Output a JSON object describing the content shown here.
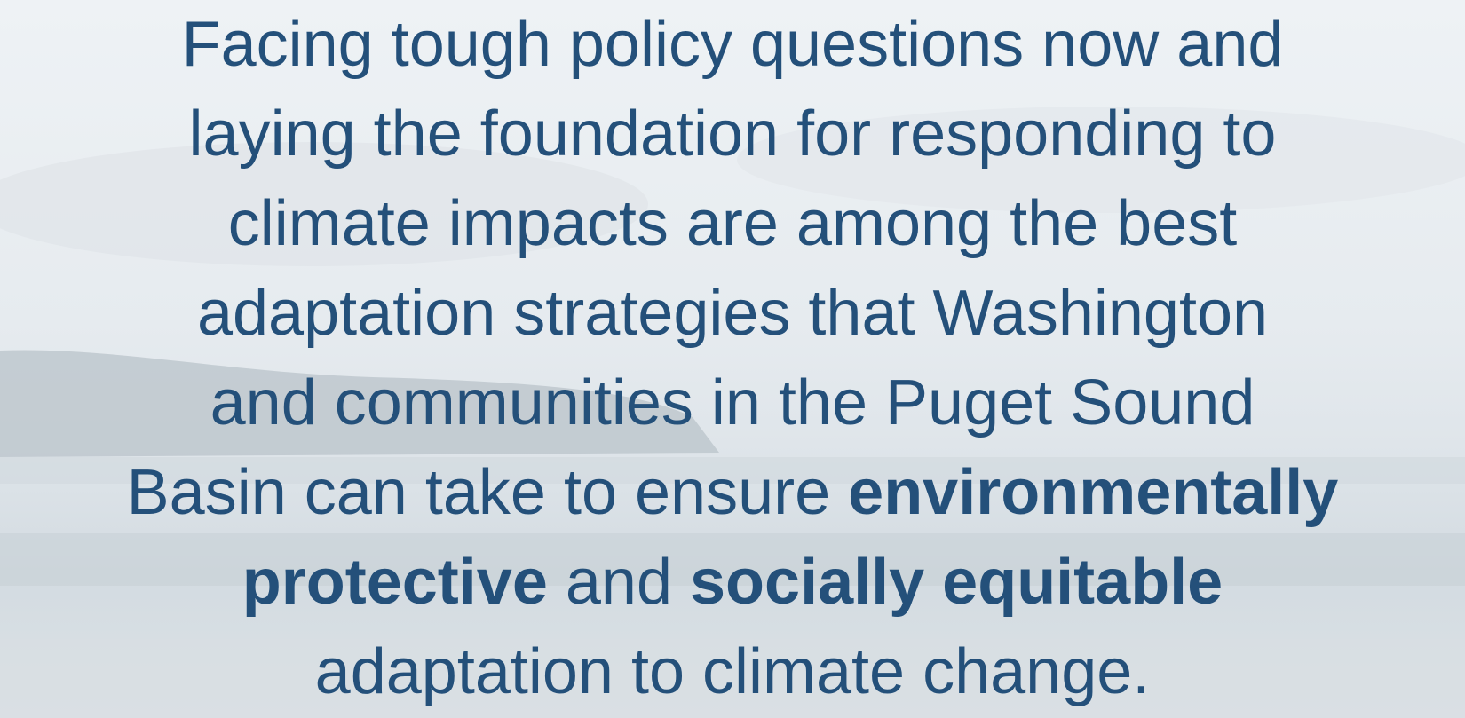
{
  "slide": {
    "lines": [
      [
        {
          "text": "Facing tough policy questions now and",
          "bold": false
        }
      ],
      [
        {
          "text": "laying the foundation for responding to",
          "bold": false
        }
      ],
      [
        {
          "text": "climate impacts are among the best",
          "bold": false
        }
      ],
      [
        {
          "text": "adaptation strategies that Washington",
          "bold": false
        }
      ],
      [
        {
          "text": "and communities in the Puget Sound",
          "bold": false
        }
      ],
      [
        {
          "text": "Basin can take to ensure ",
          "bold": false
        },
        {
          "text": "environmentally",
          "bold": true
        }
      ],
      [
        {
          "text": "protective",
          "bold": true
        },
        {
          "text": " and ",
          "bold": false
        },
        {
          "text": "socially equitable",
          "bold": true
        }
      ],
      [
        {
          "text": "adaptation to climate change.",
          "bold": false
        }
      ]
    ]
  }
}
